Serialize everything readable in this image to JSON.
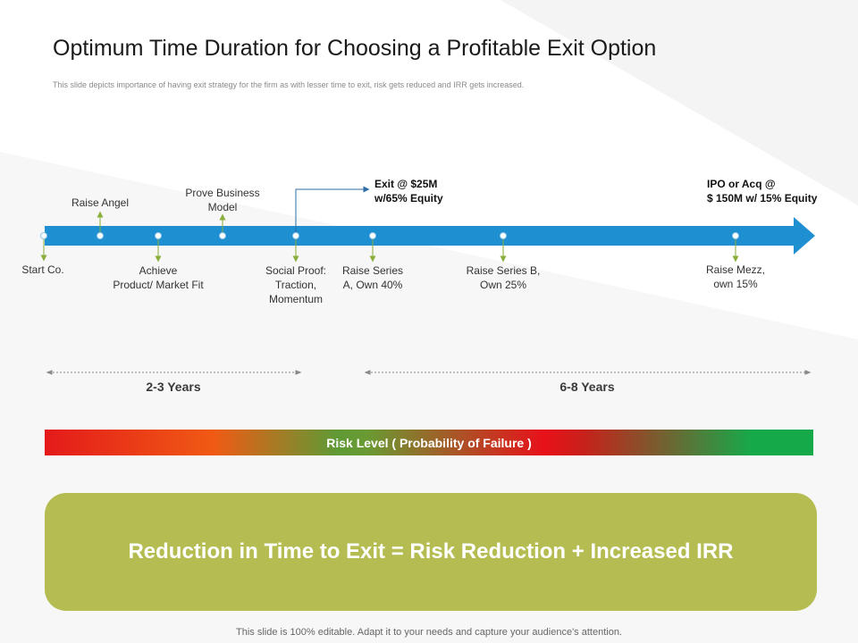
{
  "title": "Optimum Time Duration for Choosing a Profitable Exit Option",
  "subtitle": "This slide depicts importance of having exit strategy for the firm as with lesser time to exit, risk gets reduced and IRR  gets increased.",
  "timeline": {
    "milestones_above": [
      {
        "label": "Raise Angel"
      },
      {
        "label": "Prove Business\nModel"
      }
    ],
    "milestones_below": [
      {
        "label": "Start Co."
      },
      {
        "label": "Achieve\nProduct/ Market Fit"
      },
      {
        "label": "Social Proof:\nTraction,\nMomentum"
      },
      {
        "label": "Raise Series\nA, Own 40%"
      },
      {
        "label": "Raise Series B,\nOwn 25%"
      },
      {
        "label": "Raise Mezz,\nown 15%"
      }
    ],
    "exits": [
      {
        "label": "Exit @ $25M\nw/65% Equity"
      },
      {
        "label": "IPO or Acq @\n$ 150M w/ 15%  Equity"
      }
    ]
  },
  "durations": {
    "short": "2-3 Years",
    "long": "6-8 Years"
  },
  "risk_bar": {
    "label": "Risk Level ( Probability of Failure )"
  },
  "summary": {
    "text": "Reduction in Time to Exit = Risk Reduction + Increased IRR"
  },
  "footer": "This slide is 100% editable. Adapt it to your needs and capture your audience's attention.",
  "colors": {
    "arrow": "#1e8fd0",
    "summary_bg": "#b5bd52",
    "stem": "#8aae3a",
    "risk_gradient": [
      "#e41a1a",
      "#f05a14",
      "#5f9a35",
      "#e8111a",
      "#16a94a"
    ]
  }
}
